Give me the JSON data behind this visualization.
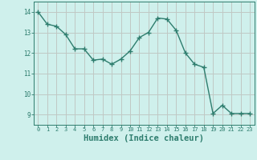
{
  "x": [
    0,
    1,
    2,
    3,
    4,
    5,
    6,
    7,
    8,
    9,
    10,
    11,
    12,
    13,
    14,
    15,
    16,
    17,
    18,
    19,
    20,
    21,
    22,
    23
  ],
  "y": [
    14.0,
    13.4,
    13.3,
    12.9,
    12.2,
    12.2,
    11.65,
    11.7,
    11.45,
    11.7,
    12.1,
    12.75,
    13.0,
    13.7,
    13.65,
    13.1,
    12.0,
    11.45,
    11.3,
    9.05,
    9.45,
    9.05,
    9.05,
    9.05
  ],
  "line_color": "#2e7d6e",
  "marker": "+",
  "marker_size": 4,
  "bg_color": "#cff0ec",
  "grid_color": "#c0c8c4",
  "axis_color": "#2e7d6e",
  "xlabel": "Humidex (Indice chaleur)",
  "xlabel_fontsize": 7.5,
  "xlim": [
    -0.5,
    23.5
  ],
  "ylim": [
    8.5,
    14.5
  ],
  "yticks": [
    9,
    10,
    11,
    12,
    13,
    14
  ],
  "xticks": [
    0,
    1,
    2,
    3,
    4,
    5,
    6,
    7,
    8,
    9,
    10,
    11,
    12,
    13,
    14,
    15,
    16,
    17,
    18,
    19,
    20,
    21,
    22,
    23
  ],
  "line_width": 1.0
}
